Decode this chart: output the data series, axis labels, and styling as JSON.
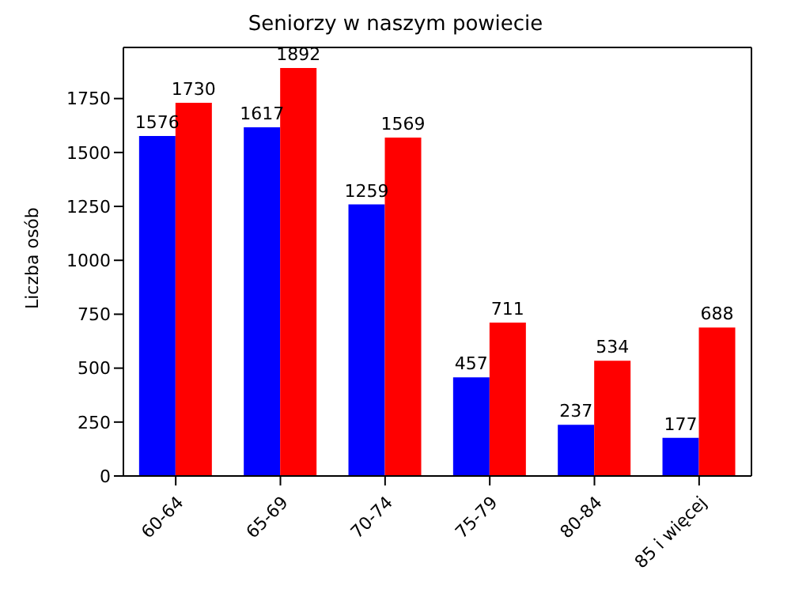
{
  "chart_data": {
    "type": "bar",
    "title": "Seniorzy w naszym powiecie",
    "ylabel": "Liczba osób",
    "categories": [
      "60-64",
      "65-69",
      "70-74",
      "75-79",
      "80-84",
      "85 i więcej"
    ],
    "series": [
      {
        "color": "#0000ff",
        "values": [
          1576,
          1617,
          1259,
          457,
          237,
          177
        ]
      },
      {
        "color": "#ff0000",
        "values": [
          1730,
          1892,
          1569,
          711,
          534,
          688
        ]
      }
    ],
    "ylim": [
      0,
      1987
    ],
    "yticks": [
      0,
      250,
      500,
      750,
      1000,
      1250,
      1500,
      1750
    ],
    "grid": false,
    "legend": false,
    "data_labels": true
  }
}
